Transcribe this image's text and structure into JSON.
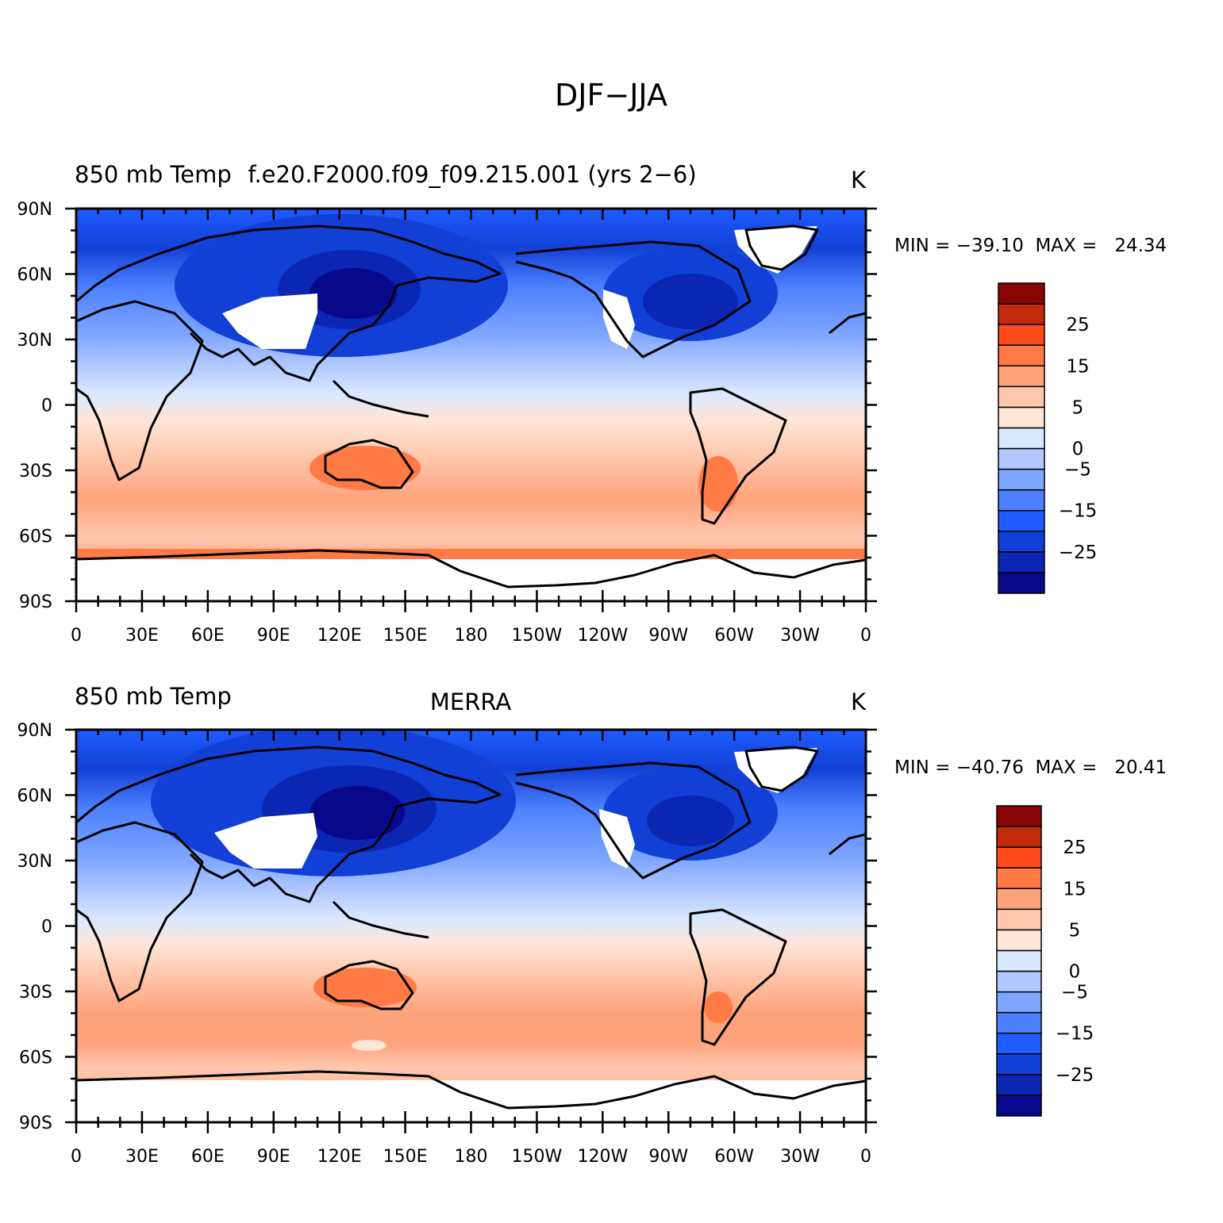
{
  "main_title": "DJF−JJA",
  "colorbar": {
    "colors": [
      "#08088a",
      "#0a26b3",
      "#1240d6",
      "#1e5cff",
      "#4d80ff",
      "#7ea6ff",
      "#b0c8ff",
      "#d8e8ff",
      "#ffe6d6",
      "#ffc8ae",
      "#ffa37c",
      "#ff7a45",
      "#ff4a1c",
      "#c22a0c",
      "#8a0505"
    ],
    "labels": [
      "−25",
      "−15",
      "−5",
      "0",
      "5",
      "15",
      "25"
    ]
  },
  "x_ticks": [
    "0",
    "30E",
    "60E",
    "90E",
    "120E",
    "150E",
    "180",
    "150W",
    "120W",
    "90W",
    "60W",
    "30W",
    "0"
  ],
  "y_ticks": [
    "90N",
    "60N",
    "30N",
    "0",
    "30S",
    "60S",
    "90S"
  ],
  "panels": [
    {
      "title_left": "850 mb Temp",
      "title_center": "f.e20.F2000.f09_f09.215.001 (yrs 2−6)",
      "title_right": "K",
      "stats": "MIN = −39.10  MAX =   24.34"
    },
    {
      "title_left": "850 mb Temp",
      "title_center": "MERRA",
      "title_right": "K",
      "stats": "MIN = −40.76  MAX =   20.41"
    }
  ]
}
